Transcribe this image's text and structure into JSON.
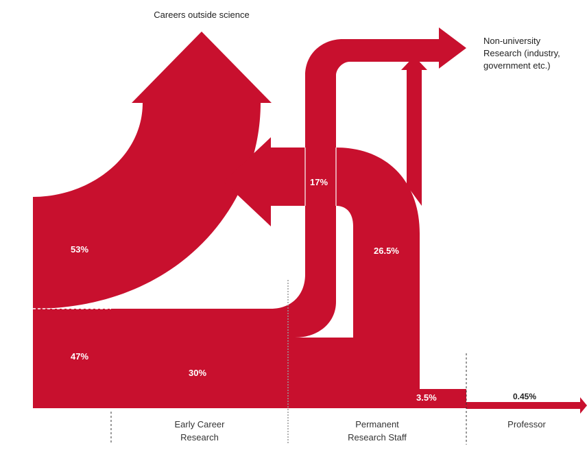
{
  "destinations": {
    "outside_science": "Careers outside science",
    "non_university": [
      "Non-university",
      "Research (industry,",
      "government etc.)"
    ]
  },
  "percentages": {
    "outside_science": "53%",
    "stay_in_research": "47%",
    "early_to_permanent": "30%",
    "permanent_to_non_university": "17%",
    "permanent_to_outside": "26.5%",
    "permanent_to_professor": "3.5%",
    "professor": "0.45%"
  },
  "stages": {
    "early_career": [
      "Early Career",
      "Research"
    ],
    "permanent_staff": [
      "Permanent",
      "Research Staff"
    ],
    "professor": [
      "Professor"
    ]
  },
  "colors": {
    "flow": "#c8102e",
    "background": "#ffffff"
  }
}
